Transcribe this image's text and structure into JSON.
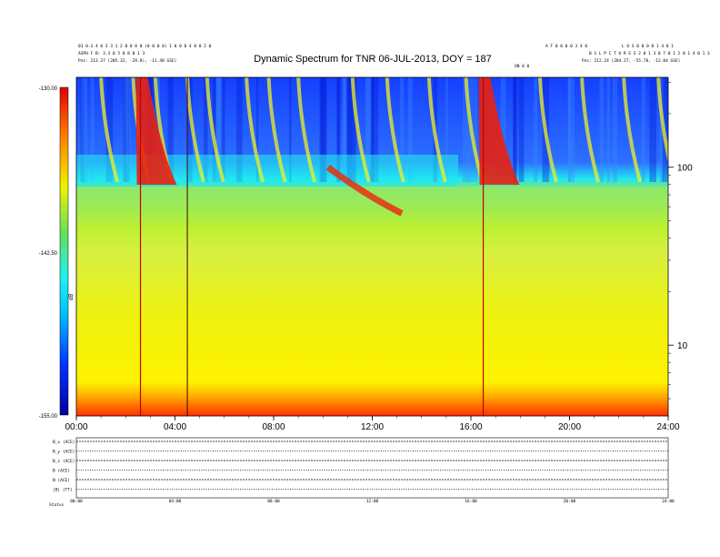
{
  "chart_data": {
    "type": "heatmap",
    "title": "Dynamic Spectrum for TNR 06-JUL-2013, DOY = 187",
    "header": {
      "left_line1": "01 0.3 4 0 3 3 1 2 0 0 0 0 (0 0 0 0) 1 0 0 0 4 0 0 2 0",
      "left_line2": "ASPH F B: 3.3 0 5 0 8 0 1 3",
      "left_pos": "Pos:   213.27 (205.32, -29.8), -11.48 GSE)",
      "right_line1": "A F 0 0 0 0 3 4 0",
      "right_line1b": "L O S 0 0 0 0 1 4 0 1",
      "right_line2": "B S L P C T U R E S  2 0 1 3 0 7 0 1 2 0 1 4 0 1 3",
      "right_pos": "Pos:   212.24 (204.27, -55.78, -12.04 GSE)",
      "right_small": "ON 0 0"
    },
    "x": {
      "ticks": [
        "00:00",
        "04:00",
        "08:00",
        "12:00",
        "16:00",
        "20:00",
        "24:00"
      ],
      "range_hours": [
        0,
        24
      ]
    },
    "y": {
      "scale": "log",
      "ticks": [
        "100",
        "10"
      ],
      "range_khz": [
        4,
        320
      ]
    },
    "colorbar": {
      "labels": [
        "-130.00",
        "-142.50",
        "-155.00"
      ],
      "range": [
        -155,
        -130
      ],
      "axis_label": "dB"
    },
    "features": {
      "type_iii_bursts_hours": [
        1.0,
        2.3,
        3.2,
        4.5,
        5.3,
        6.9,
        7.8,
        9.0,
        11.2,
        12.6,
        14.3,
        15.8,
        18.8,
        20.5,
        22.2,
        23.6
      ],
      "strong_bursts_hours": [
        2.6,
        16.5
      ],
      "type_ii_event": {
        "start_hour": 10.2,
        "end_hour": 13.2,
        "freq_khz_start": 100,
        "freq_khz_end": 55
      }
    },
    "lower_panels": {
      "labels": [
        "B_x (ACE)",
        "B_y (ACE)",
        "B_z (ACE)",
        "B (ACE)",
        "N (ACE)",
        "|B| (TT)"
      ],
      "footer_label": "Status"
    }
  }
}
